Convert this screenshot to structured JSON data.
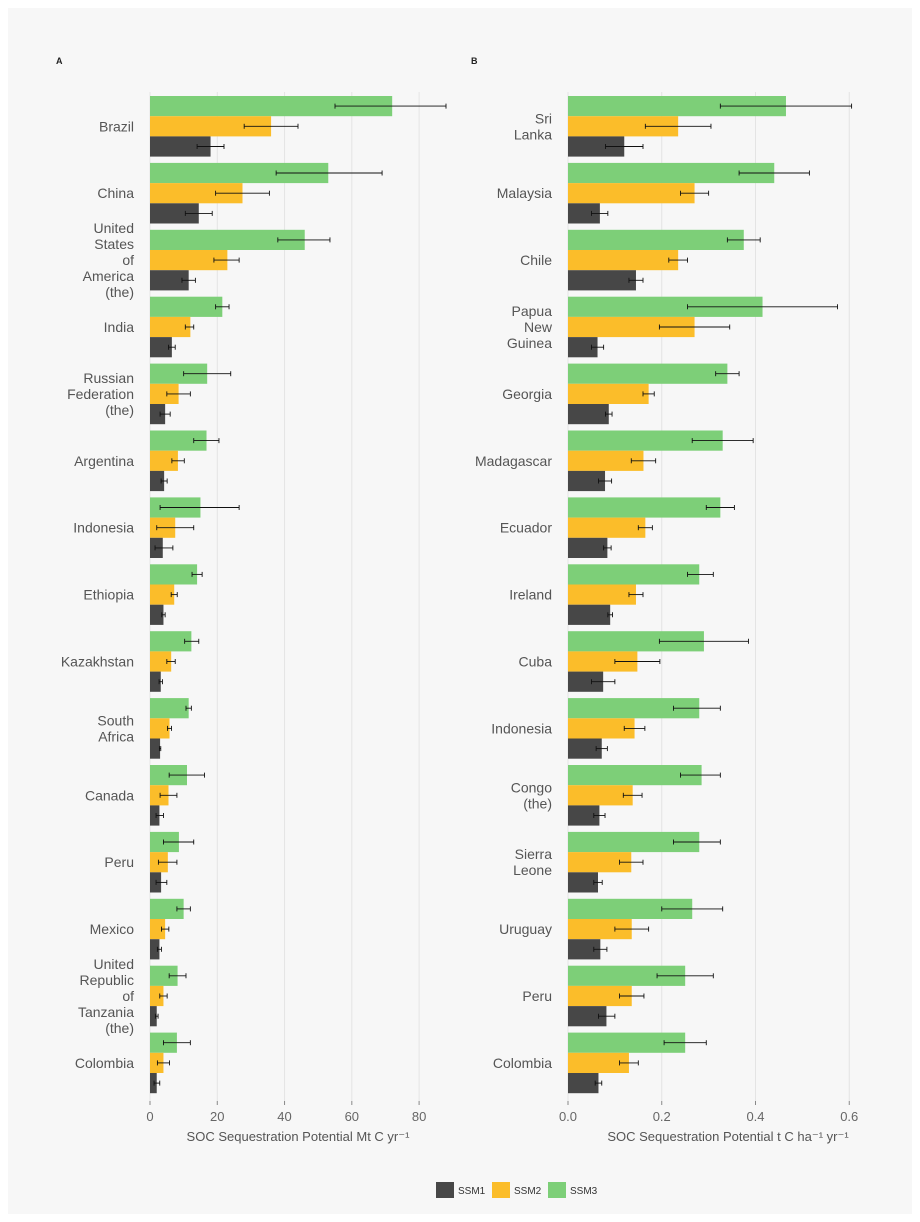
{
  "chart_data": [
    {
      "type": "bar",
      "panel_label": "A",
      "orientation": "horizontal",
      "categories": [
        [
          "Brazil"
        ],
        [
          "China"
        ],
        [
          "United",
          "States",
          "of",
          "America",
          "(the)"
        ],
        [
          "India"
        ],
        [
          "Russian",
          "Federation",
          "(the)"
        ],
        [
          "Argentina"
        ],
        [
          "Indonesia"
        ],
        [
          "Ethiopia"
        ],
        [
          "Kazakhstan"
        ],
        [
          "South",
          "Africa"
        ],
        [
          "Canada"
        ],
        [
          "Peru"
        ],
        [
          "Mexico"
        ],
        [
          "United",
          "Republic",
          "of",
          "Tanzania",
          "(the)"
        ],
        [
          "Colombia"
        ]
      ],
      "series": [
        {
          "name": "SSM1",
          "color": "#474747",
          "values": [
            18,
            14.5,
            11.5,
            6.5,
            4.5,
            4.2,
            3.8,
            4,
            3.2,
            3,
            2.8,
            3.3,
            2.8,
            2,
            2
          ],
          "error": [
            [
              14,
              22
            ],
            [
              10.5,
              18.5
            ],
            [
              9.5,
              13.5
            ],
            [
              5.5,
              7.5
            ],
            [
              3,
              6
            ],
            [
              3.3,
              5.1
            ],
            [
              1.5,
              6.8
            ],
            [
              3.5,
              4.5
            ],
            [
              2.7,
              3.7
            ],
            [
              2.8,
              3.2
            ],
            [
              1.8,
              4
            ],
            [
              1.8,
              5
            ],
            [
              2.2,
              3.4
            ],
            [
              1.6,
              2.4
            ],
            [
              1.2,
              2.9
            ]
          ]
        },
        {
          "name": "SSM2",
          "color": "#fbbd2a",
          "values": [
            36,
            27.5,
            23,
            12,
            8.5,
            8.3,
            7.5,
            7.2,
            6.3,
            5.8,
            5.5,
            5.3,
            4.5,
            4,
            4
          ],
          "error": [
            [
              28,
              44
            ],
            [
              19.5,
              35.5
            ],
            [
              19,
              26.5
            ],
            [
              10.5,
              13
            ],
            [
              5,
              12
            ],
            [
              6.5,
              10.2
            ],
            [
              2,
              13
            ],
            [
              6.3,
              8.1
            ],
            [
              5,
              7.5
            ],
            [
              5.2,
              6.4
            ],
            [
              3,
              8
            ],
            [
              2.5,
              8
            ],
            [
              3.4,
              5.6
            ],
            [
              2.9,
              5.1
            ],
            [
              2.2,
              5.8
            ]
          ]
        },
        {
          "name": "SSM3",
          "color": "#7dcf78",
          "values": [
            72,
            53,
            46,
            21.5,
            17,
            16.8,
            15,
            14,
            12.3,
            11.5,
            11,
            8.6,
            10,
            8.2,
            8
          ],
          "error": [
            [
              55,
              88
            ],
            [
              37.5,
              69
            ],
            [
              38,
              53.5
            ],
            [
              19.5,
              23.5
            ],
            [
              10,
              24
            ],
            [
              13,
              20.5
            ],
            [
              3,
              26.5
            ],
            [
              12.5,
              15.5
            ],
            [
              10.3,
              14.5
            ],
            [
              10.7,
              12.3
            ],
            [
              5.7,
              16.2
            ],
            [
              4,
              13
            ],
            [
              8,
              12
            ],
            [
              5.7,
              10.7
            ],
            [
              4,
              12
            ]
          ]
        }
      ],
      "xlabel": "SOC Sequestration Potential  Mt C yr⁻¹",
      "xlim": [
        0,
        88
      ],
      "xticks": [
        0,
        20,
        40,
        60,
        80
      ]
    },
    {
      "type": "bar",
      "panel_label": "B",
      "orientation": "horizontal",
      "categories": [
        [
          "Sri",
          "Lanka"
        ],
        [
          "Malaysia"
        ],
        [
          "Chile"
        ],
        [
          "Papua",
          "New",
          "Guinea"
        ],
        [
          "Georgia"
        ],
        [
          "Madagascar"
        ],
        [
          "Ecuador"
        ],
        [
          "Ireland"
        ],
        [
          "Cuba"
        ],
        [
          "Indonesia"
        ],
        [
          "Congo",
          "(the)"
        ],
        [
          "Sierra",
          "Leone"
        ],
        [
          "Uruguay"
        ],
        [
          "Peru"
        ],
        [
          "Colombia"
        ]
      ],
      "series": [
        {
          "name": "SSM1",
          "color": "#474747",
          "values": [
            0.12,
            0.068,
            0.145,
            0.063,
            0.087,
            0.079,
            0.084,
            0.09,
            0.075,
            0.072,
            0.067,
            0.064,
            0.069,
            0.082,
            0.065
          ],
          "error": [
            [
              0.08,
              0.16
            ],
            [
              0.05,
              0.085
            ],
            [
              0.13,
              0.16
            ],
            [
              0.05,
              0.076
            ],
            [
              0.08,
              0.094
            ],
            [
              0.065,
              0.093
            ],
            [
              0.076,
              0.092
            ],
            [
              0.085,
              0.095
            ],
            [
              0.05,
              0.1
            ],
            [
              0.06,
              0.084
            ],
            [
              0.055,
              0.079
            ],
            [
              0.055,
              0.073
            ],
            [
              0.055,
              0.083
            ],
            [
              0.065,
              0.1
            ],
            [
              0.058,
              0.072
            ]
          ]
        },
        {
          "name": "SSM2",
          "color": "#fbbd2a",
          "values": [
            0.235,
            0.27,
            0.235,
            0.27,
            0.172,
            0.161,
            0.165,
            0.145,
            0.148,
            0.142,
            0.138,
            0.135,
            0.136,
            0.136,
            0.13
          ],
          "error": [
            [
              0.165,
              0.305
            ],
            [
              0.24,
              0.3
            ],
            [
              0.215,
              0.255
            ],
            [
              0.195,
              0.345
            ],
            [
              0.16,
              0.184
            ],
            [
              0.135,
              0.187
            ],
            [
              0.15,
              0.18
            ],
            [
              0.13,
              0.16
            ],
            [
              0.1,
              0.196
            ],
            [
              0.12,
              0.164
            ],
            [
              0.118,
              0.158
            ],
            [
              0.11,
              0.16
            ],
            [
              0.1,
              0.172
            ],
            [
              0.11,
              0.162
            ],
            [
              0.11,
              0.15
            ]
          ]
        },
        {
          "name": "SSM3",
          "color": "#7dcf78",
          "values": [
            0.465,
            0.44,
            0.375,
            0.415,
            0.34,
            0.33,
            0.325,
            0.28,
            0.29,
            0.28,
            0.285,
            0.28,
            0.265,
            0.25,
            0.25
          ],
          "error": [
            [
              0.325,
              0.605
            ],
            [
              0.365,
              0.515
            ],
            [
              0.34,
              0.41
            ],
            [
              0.255,
              0.575
            ],
            [
              0.315,
              0.365
            ],
            [
              0.265,
              0.395
            ],
            [
              0.295,
              0.355
            ],
            [
              0.255,
              0.31
            ],
            [
              0.195,
              0.385
            ],
            [
              0.225,
              0.325
            ],
            [
              0.24,
              0.325
            ],
            [
              0.225,
              0.325
            ],
            [
              0.2,
              0.33
            ],
            [
              0.19,
              0.31
            ],
            [
              0.205,
              0.295
            ]
          ]
        }
      ],
      "xlabel": "SOC Sequestration Potential  t C ha⁻¹ yr⁻¹",
      "xlim": [
        0,
        0.64
      ],
      "xticks": [
        0.0,
        0.2,
        0.4,
        0.6
      ]
    }
  ],
  "legend": {
    "items": [
      {
        "label": "SSM1",
        "color": "#474747"
      },
      {
        "label": "SSM2",
        "color": "#fbbd2a"
      },
      {
        "label": "SSM3",
        "color": "#7dcf78"
      }
    ]
  }
}
